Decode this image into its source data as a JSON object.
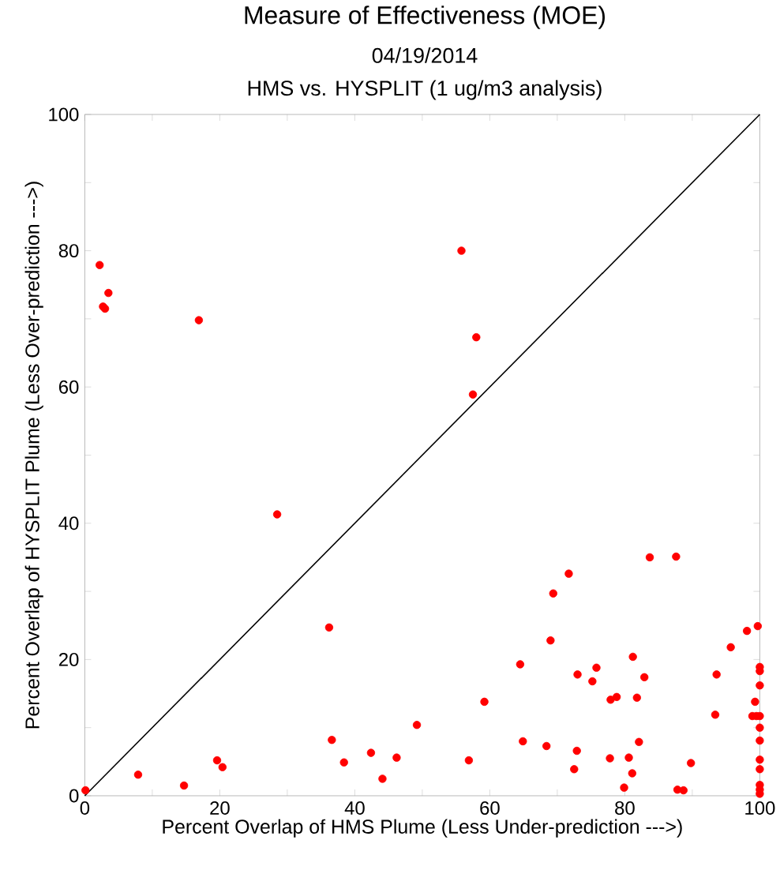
{
  "chart_data": {
    "type": "scatter",
    "title": "Measure of Effectiveness (MOE)",
    "subtitle": "04/19/2014",
    "annotations": [
      "HMS vs. HYSPLIT  (1 ug/m3 analysis)"
    ],
    "xlabel": "Percent Overlap of HMS Plume (Less Under-prediction --->)",
    "ylabel": "Percent Overlap of HYSPLIT Plume (Less Over-prediction --->)",
    "xlim": [
      0,
      100
    ],
    "ylim": [
      0,
      100
    ],
    "xticks": [
      0,
      {
        "value": 10,
        "label": null
      },
      20,
      {
        "value": 30,
        "label": null
      },
      40,
      {
        "value": 50,
        "label": null
      },
      60,
      {
        "value": 70,
        "label": null
      },
      80,
      {
        "value": 90,
        "label": null
      },
      100
    ],
    "yticks": [
      0,
      {
        "value": 10,
        "label": null
      },
      20,
      {
        "value": 30,
        "label": null
      },
      40,
      {
        "value": 50,
        "label": null
      },
      60,
      {
        "value": 70,
        "label": null
      },
      80,
      {
        "value": 90,
        "label": null
      },
      100
    ],
    "grid": false,
    "series": [
      {
        "marker": "circle",
        "color": "#ff0000",
        "x": [
          0.1,
          2.2,
          3.5,
          2.7,
          3.0,
          16.9,
          28.5,
          36.2,
          36.6,
          7.9,
          14.7,
          19.6,
          20.4,
          38.4,
          42.4,
          44.1,
          46.2,
          49.2,
          55.8,
          58.0,
          57.5,
          56.9,
          59.2,
          64.5,
          64.9,
          68.4,
          69.0,
          69.4,
          71.7,
          73.0,
          72.9,
          72.5,
          75.2,
          75.8,
          77.8,
          77.9,
          78.8,
          79.9,
          80.6,
          81.1,
          81.2,
          81.8,
          82.1,
          82.9,
          83.7,
          87.6,
          87.8,
          88.7,
          89.8,
          93.4,
          93.6,
          95.7,
          98.1,
          99.7,
          100,
          100,
          100,
          99.3,
          98.9,
          99.5,
          100,
          100,
          100,
          100,
          100,
          100,
          100,
          100
        ],
        "values": [
          0.8,
          77.9,
          73.8,
          71.8,
          71.5,
          69.8,
          41.3,
          24.7,
          8.2,
          3.1,
          1.5,
          5.2,
          4.2,
          4.9,
          6.3,
          2.5,
          5.6,
          10.4,
          80.0,
          67.3,
          58.9,
          5.2,
          13.8,
          19.3,
          8.0,
          7.3,
          22.8,
          29.7,
          32.6,
          17.8,
          6.6,
          3.9,
          16.8,
          18.8,
          5.5,
          14.1,
          14.5,
          1.2,
          5.6,
          3.3,
          20.4,
          14.4,
          7.9,
          17.4,
          35.0,
          35.1,
          0.9,
          0.8,
          4.8,
          11.9,
          17.8,
          21.8,
          24.2,
          24.9,
          18.9,
          18.3,
          16.2,
          13.8,
          11.7,
          11.7,
          11.7,
          10.0,
          8.1,
          5.3,
          3.9,
          1.6,
          0.9,
          0.3
        ]
      },
      {
        "type": "line",
        "marker": "none",
        "color": "#000000",
        "x": [
          0,
          100
        ],
        "values": [
          0,
          100
        ]
      }
    ]
  }
}
